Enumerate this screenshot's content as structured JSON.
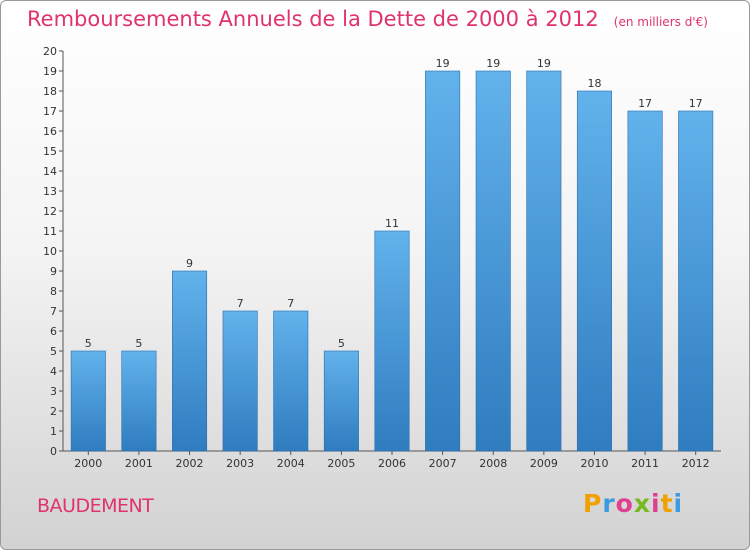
{
  "header": {
    "title": "Remboursements Annuels de la Dette de 2000 à 2012",
    "unit": "(en milliers d'€)"
  },
  "commune": "BAUDEMENT",
  "logo": {
    "text": "Proxiti",
    "letters": [
      {
        "char": "P",
        "color": "#f0a000"
      },
      {
        "char": "r",
        "color": "#3c9ae0"
      },
      {
        "char": "o",
        "color": "#e04090"
      },
      {
        "char": "x",
        "color": "#78b820"
      },
      {
        "char": "i",
        "color": "#e04090"
      },
      {
        "char": "t",
        "color": "#f0a000"
      },
      {
        "char": "i",
        "color": "#3c9ae0"
      }
    ]
  },
  "chart_data": {
    "type": "bar",
    "title": "Remboursements Annuels de la Dette de 2000 à 2012",
    "subtitle": "(en milliers d'€)",
    "categories": [
      "2000",
      "2001",
      "2002",
      "2003",
      "2004",
      "2005",
      "2006",
      "2007",
      "2008",
      "2009",
      "2010",
      "2011",
      "2012"
    ],
    "values": [
      5,
      5,
      9,
      7,
      7,
      5,
      11,
      19,
      19,
      19,
      18,
      17,
      17
    ],
    "data_labels": [
      "5",
      "5",
      "9",
      "7",
      "7",
      "5",
      "11",
      "19",
      "19",
      "19",
      "18",
      "17",
      "17"
    ],
    "yticks": [
      "0",
      "1",
      "2",
      "3",
      "4",
      "5",
      "6",
      "7",
      "8",
      "9",
      "10",
      "11",
      "12",
      "13",
      "14",
      "15",
      "16",
      "17",
      "18",
      "19",
      "20"
    ],
    "ylim": [
      0,
      20
    ],
    "grid": false,
    "legend": "none",
    "bar_color": "#4a9ee0"
  }
}
